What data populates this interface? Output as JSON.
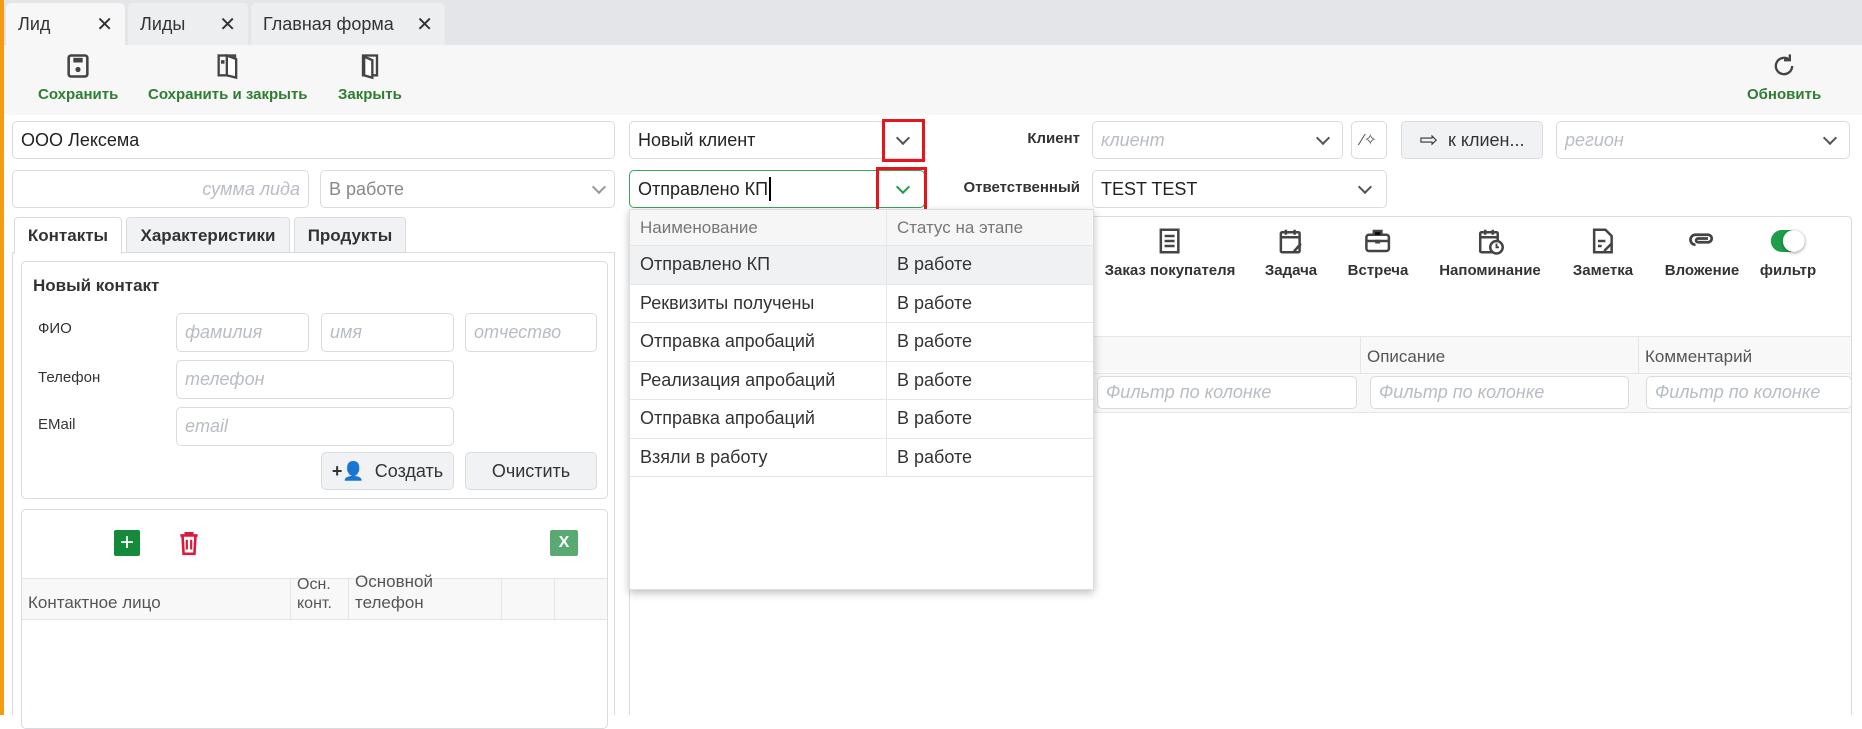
{
  "tabs": [
    {
      "label": "Лид",
      "active": true
    },
    {
      "label": "Лиды"
    },
    {
      "label": "Главная форма"
    }
  ],
  "toolbar": {
    "save": "Сохранить",
    "save_close": "Сохранить и закрыть",
    "close": "Закрыть",
    "refresh": "Обновить"
  },
  "form": {
    "name": "ООО Лексема",
    "sum_placeholder": "сумма лида",
    "status": "В работе",
    "client_type": "Новый клиент",
    "stage": "Отправлено КП",
    "client_label": "Клиент",
    "client_placeholder": "клиент",
    "to_client": "к клиен...",
    "region_placeholder": "регион",
    "responsible_label": "Ответственный",
    "responsible": "TEST TEST"
  },
  "left_tabs": [
    "Контакты",
    "Характеристики",
    "Продукты"
  ],
  "new_contact": {
    "title": "Новый контакт",
    "fio_label": "ФИО",
    "surname_ph": "фамилия",
    "name_ph": "имя",
    "patronymic_ph": "отчество",
    "phone_label": "Телефон",
    "phone_ph": "телефон",
    "email_label": "EMail",
    "email_ph": "email",
    "create": "Создать",
    "clear": "Очистить"
  },
  "contacts_grid": {
    "excel": "X",
    "columns": [
      "Контактное лицо",
      "Осн. конт.",
      "Основной телефон",
      "",
      ""
    ]
  },
  "actions": [
    "Заказ покупателя",
    "Задача",
    "Встреча",
    "Напоминание",
    "Заметка",
    "Вложение",
    "фильтр"
  ],
  "filter_toggle_on": true,
  "right_grid": {
    "columns": [
      "",
      "Описание",
      "Комментарий"
    ],
    "filter_ph": "Фильтр по колонке"
  },
  "stage_dropdown": {
    "headers": [
      "Наименование",
      "Статус на этапе"
    ],
    "rows": [
      [
        "Отправлено КП",
        "В работе"
      ],
      [
        "Реквизиты получены",
        "В работе"
      ],
      [
        "Отправка апробаций",
        "В работе"
      ],
      [
        "Реализация апробаций",
        "В работе"
      ],
      [
        "Отправка апробаций",
        "В работе"
      ],
      [
        "Взяли в работу",
        "В работе"
      ]
    ]
  },
  "colors": {
    "accent_green": "#2e7d32",
    "highlight": "#e8141c",
    "left_strip": "#f39c12"
  }
}
